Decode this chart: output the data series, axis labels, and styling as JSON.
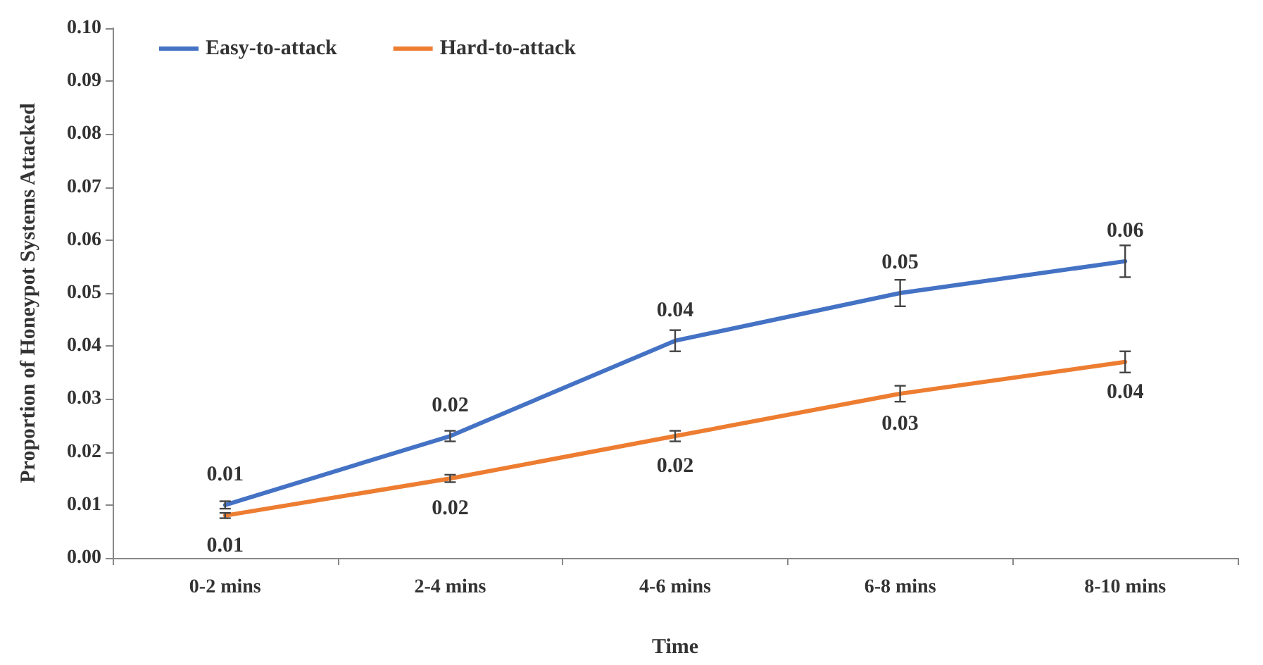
{
  "chart_data": {
    "type": "line",
    "xlabel": "Time",
    "ylabel": "Proportion of Honeypot Systems Attacked",
    "categories": [
      "0-2 mins",
      "2-4 mins",
      "4-6 mins",
      "6-8 mins",
      "8-10 mins"
    ],
    "series": [
      {
        "name": "Easy-to-attack",
        "color": "#4472c4",
        "values": [
          0.01,
          0.023,
          0.041,
          0.05,
          0.056
        ],
        "errors": [
          0.0007,
          0.001,
          0.002,
          0.0025,
          0.003
        ],
        "value_labels": [
          "0.01",
          "0.02",
          "0.04",
          "0.05",
          "0.06"
        ]
      },
      {
        "name": "Hard-to-attack",
        "color": "#ed7d31",
        "values": [
          0.008,
          0.015,
          0.023,
          0.031,
          0.037
        ],
        "errors": [
          0.0005,
          0.0007,
          0.001,
          0.0015,
          0.002
        ],
        "value_labels": [
          "0.01",
          "0.02",
          "0.02",
          "0.03",
          "0.04"
        ]
      }
    ],
    "ylim": [
      0,
      0.1
    ],
    "yticks": [
      {
        "value": 0,
        "label": "0.00"
      },
      {
        "value": 0.01,
        "label": "0.01"
      },
      {
        "value": 0.02,
        "label": "0.02"
      },
      {
        "value": 0.03,
        "label": "0.03"
      },
      {
        "value": 0.04,
        "label": "0.04"
      },
      {
        "value": 0.05,
        "label": "0.05"
      },
      {
        "value": 0.06,
        "label": "0.06"
      },
      {
        "value": 0.07,
        "label": "0.07"
      },
      {
        "value": 0.08,
        "label": "0.08"
      },
      {
        "value": 0.09,
        "label": "0.09"
      },
      {
        "value": 0.1,
        "label": "0.10"
      }
    ],
    "grid": false,
    "legend": "top left",
    "marker": "none",
    "line_style": "solid"
  }
}
